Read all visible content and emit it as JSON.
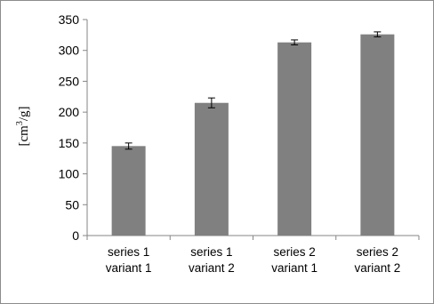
{
  "chart_data": {
    "type": "bar",
    "title": "",
    "xlabel": "",
    "ylabel": "[cm3/g]",
    "ylabel_base": "[cm",
    "ylabel_sup": "3",
    "ylabel_tail": "/g]",
    "ylim": [
      0,
      350
    ],
    "yticks": [
      0,
      50,
      100,
      150,
      200,
      250,
      300,
      350
    ],
    "grid": false,
    "legend": "none",
    "categories": [
      [
        "series 1",
        "variant 1"
      ],
      [
        "series 1",
        "variant 2"
      ],
      [
        "series 2",
        "variant 1"
      ],
      [
        "series 2",
        "variant 2"
      ]
    ],
    "values": [
      145,
      215,
      313,
      326
    ],
    "error": [
      5,
      8,
      4,
      4
    ],
    "colors": {
      "bar": "#808080",
      "axis": "#868686",
      "error": "#000000"
    }
  }
}
